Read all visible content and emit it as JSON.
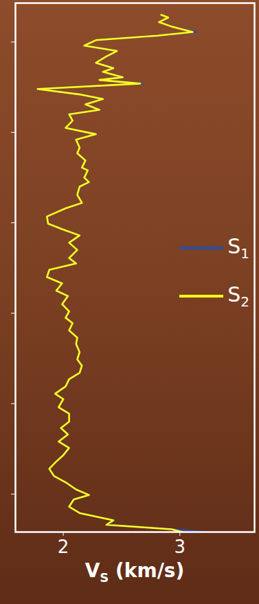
{
  "chart_data": {
    "type": "line",
    "x_label": "VS (km/s)",
    "xlim": [
      1.59,
      3.64
    ],
    "xticks": [
      2,
      3
    ],
    "ylim": [
      0.57,
      6.42
    ],
    "yticks": [
      1,
      2,
      3,
      4,
      5,
      6
    ],
    "tick_labels": "x",
    "grid": false,
    "legend": "right",
    "y": [
      0.7,
      0.73,
      0.78,
      0.83,
      0.89,
      0.93,
      0.98,
      1.04,
      1.1,
      1.16,
      1.23,
      1.29,
      1.33,
      1.39,
      1.42,
      1.46,
      1.52,
      1.58,
      1.63,
      1.69,
      1.75,
      1.8,
      1.87,
      1.95,
      2.02,
      2.08,
      2.17,
      2.23,
      2.31,
      2.39,
      2.42,
      2.5,
      2.55,
      2.6,
      2.69,
      2.78,
      2.84,
      2.93,
      3.01,
      3.07,
      3.14,
      3.22,
      3.3,
      3.39,
      3.45,
      3.52,
      3.6,
      3.67,
      3.75,
      3.81,
      3.9,
      3.98,
      4.05,
      4.11,
      4.19,
      4.27,
      4.34,
      4.43,
      4.51,
      4.58,
      4.66,
      4.73,
      4.81,
      4.89,
      4.95,
      5.04,
      5.11,
      5.2,
      5.27,
      5.34,
      5.42,
      5.49,
      5.57,
      5.64,
      5.72,
      5.8,
      5.87,
      5.95,
      6.01,
      6.06,
      6.14,
      6.21,
      6.29,
      6.34,
      6.39,
      6.42
    ],
    "series": [
      {
        "name": "S1",
        "color": "#2c4fa3",
        "values": [
          2.84,
          2.9,
          2.82,
          2.93,
          3.14,
          2.81,
          2.28,
          2.18,
          2.46,
          2.37,
          2.28,
          2.43,
          2.34,
          2.51,
          2.31,
          2.68,
          1.78,
          2.14,
          2.34,
          2.19,
          2.31,
          2.05,
          2.08,
          2.02,
          2.28,
          2.11,
          2.14,
          2.12,
          2.19,
          2.16,
          2.21,
          2.18,
          2.22,
          2.14,
          2.12,
          2.16,
          2.02,
          1.86,
          1.87,
          1.99,
          2.14,
          2.05,
          2.12,
          2.05,
          2.11,
          1.88,
          1.86,
          1.99,
          1.94,
          2.04,
          1.99,
          2.05,
          2.02,
          2.08,
          2.05,
          2.12,
          2.11,
          2.14,
          2.12,
          2.16,
          2.14,
          2.05,
          2.02,
          1.93,
          2.0,
          1.96,
          2.05,
          2.05,
          1.98,
          2.04,
          1.96,
          2.05,
          2.0,
          1.94,
          1.88,
          1.92,
          2.02,
          2.11,
          2.22,
          2.09,
          2.05,
          2.14,
          2.43,
          2.4,
          2.93,
          3.22
        ]
      },
      {
        "name": "S2",
        "color": "#ffff1a",
        "values": [
          2.84,
          2.9,
          2.82,
          2.93,
          3.11,
          2.81,
          2.28,
          2.18,
          2.46,
          2.37,
          2.28,
          2.43,
          2.34,
          2.51,
          2.31,
          2.66,
          1.78,
          2.14,
          2.34,
          2.19,
          2.31,
          2.05,
          2.08,
          2.02,
          2.28,
          2.11,
          2.14,
          2.12,
          2.19,
          2.16,
          2.21,
          2.18,
          2.22,
          2.14,
          2.12,
          2.16,
          2.02,
          1.86,
          1.87,
          1.99,
          2.14,
          2.05,
          2.12,
          2.05,
          2.11,
          1.88,
          1.86,
          1.99,
          1.94,
          2.04,
          1.99,
          2.05,
          2.02,
          2.08,
          2.05,
          2.12,
          2.11,
          2.14,
          2.12,
          2.16,
          2.14,
          2.05,
          2.02,
          1.93,
          2.0,
          1.96,
          2.05,
          2.05,
          1.98,
          2.04,
          1.96,
          2.05,
          2.0,
          1.94,
          1.88,
          1.92,
          2.02,
          2.11,
          2.22,
          2.09,
          2.05,
          2.14,
          2.43,
          2.37,
          2.93,
          3.02
        ]
      }
    ]
  }
}
